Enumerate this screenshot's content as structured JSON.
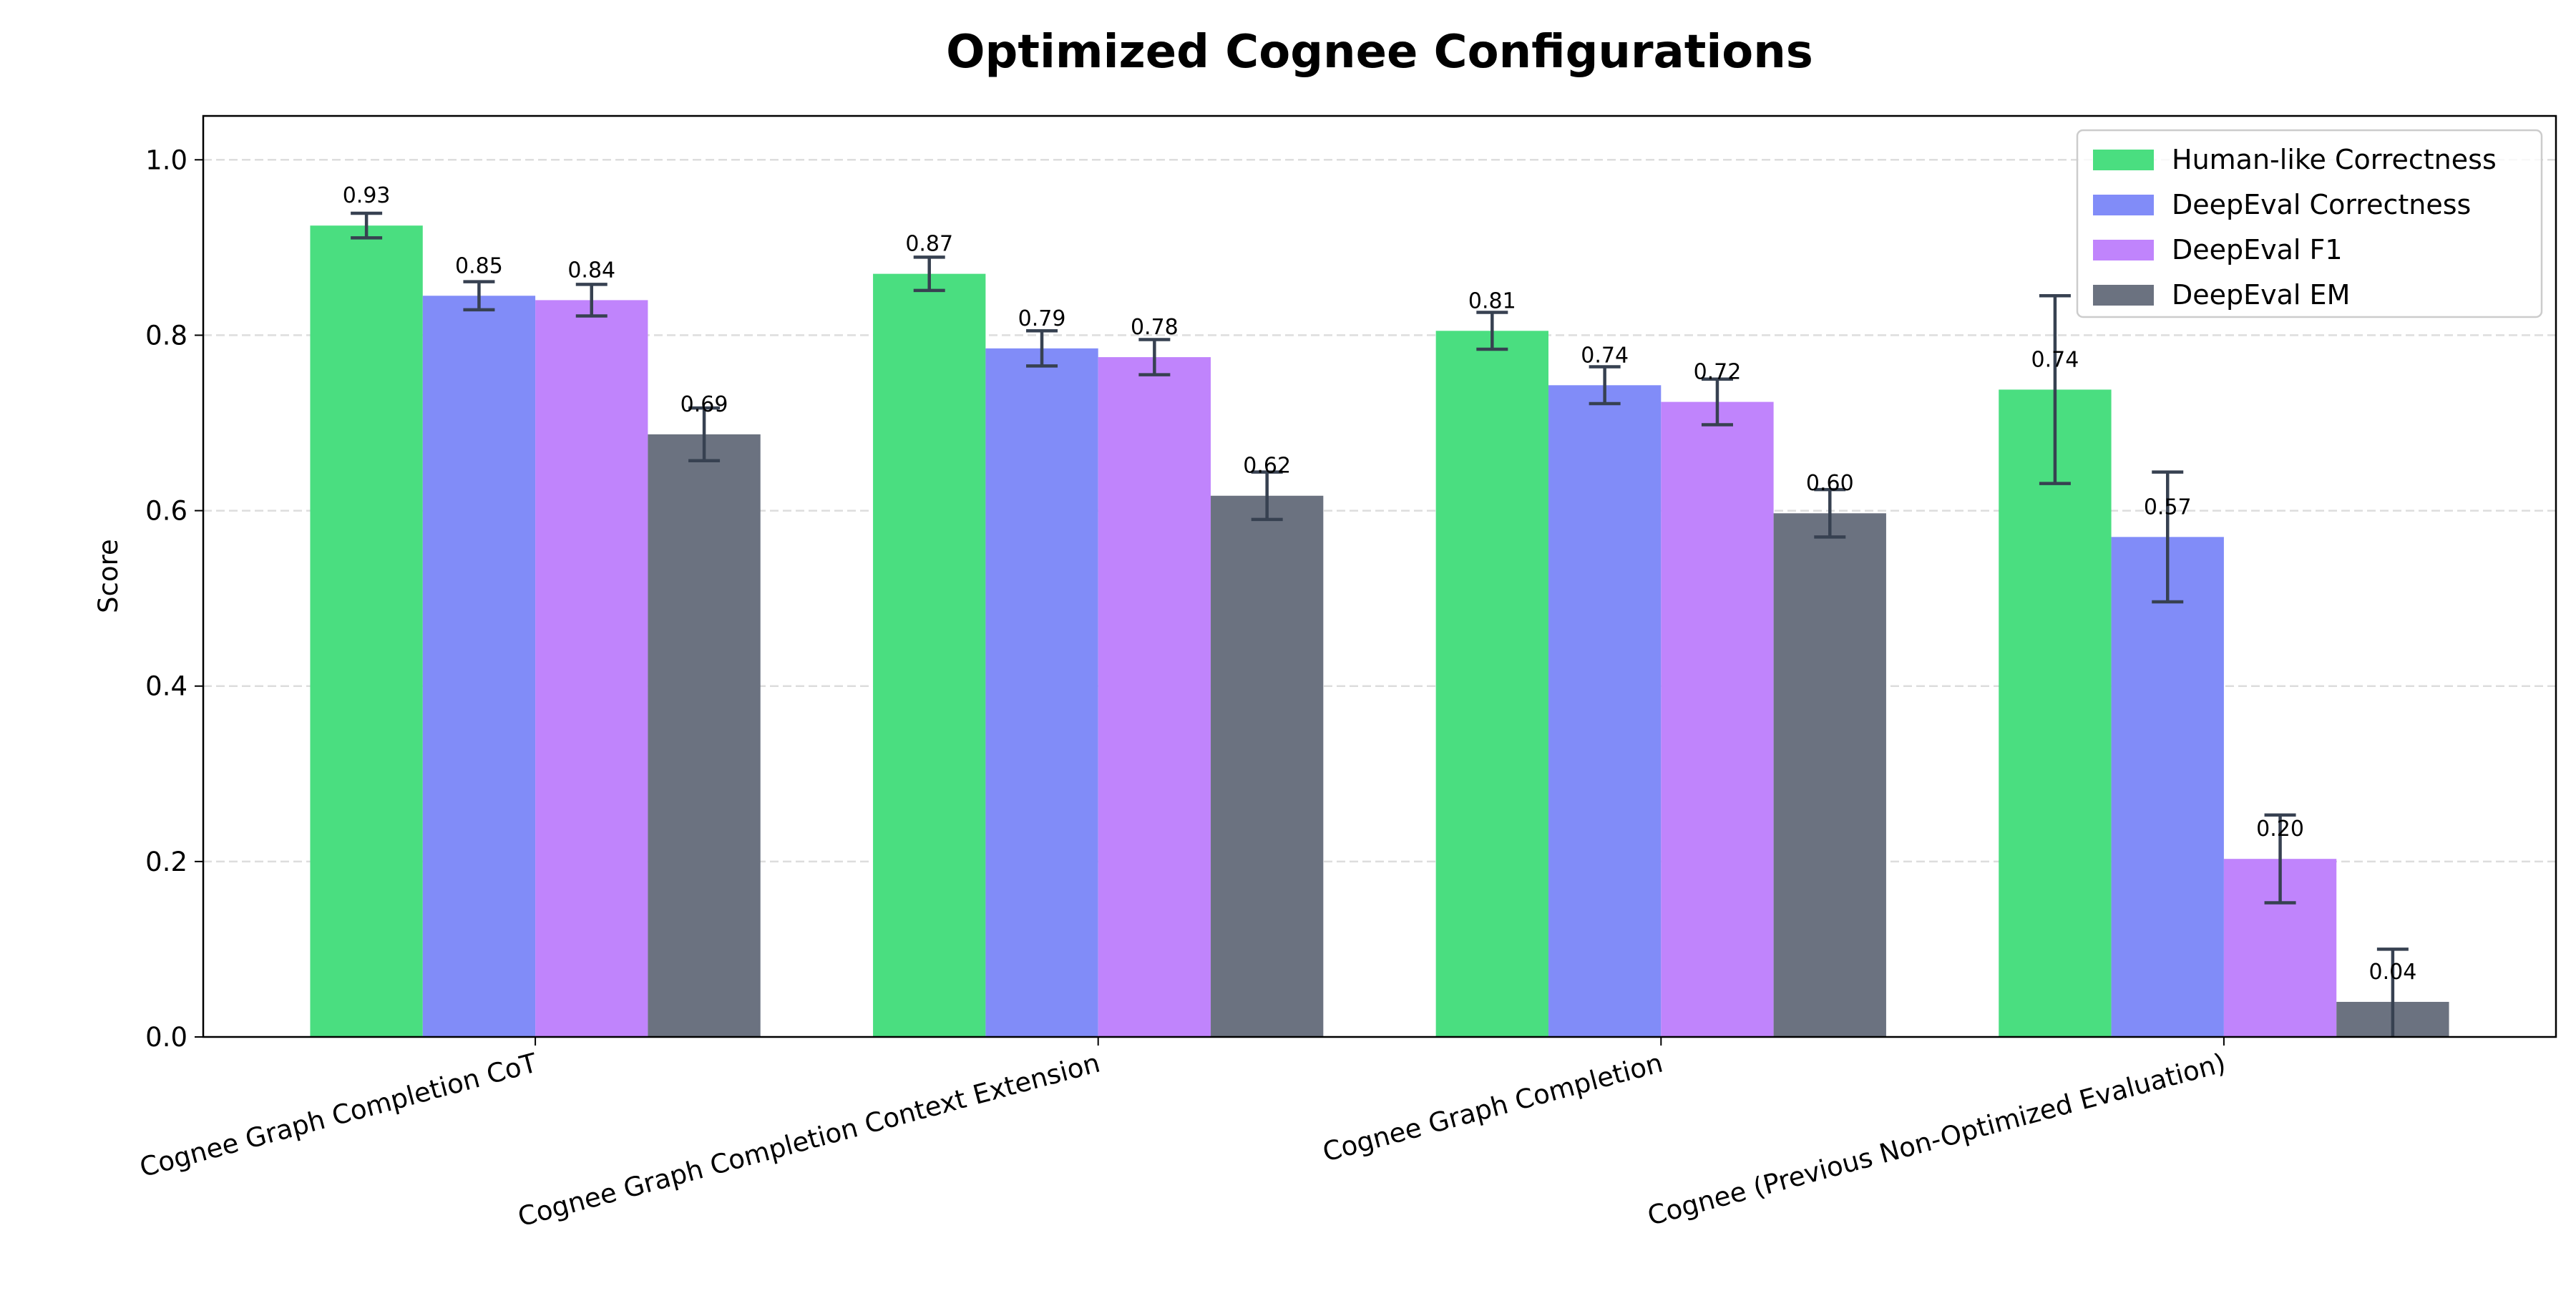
{
  "chart_data": {
    "type": "bar",
    "title": "Optimized Cognee Configurations",
    "xlabel": "",
    "ylabel": "Score",
    "ylim": [
      0,
      1.05
    ],
    "yticks": [
      0.0,
      0.2,
      0.4,
      0.6,
      0.8,
      1.0
    ],
    "ytick_labels": [
      "0.0",
      "0.2",
      "0.4",
      "0.6",
      "0.8",
      "1.0"
    ],
    "grid": "y dashed",
    "legend_position": "top-right",
    "categories": [
      "Cognee Graph Completion CoT",
      "Cognee Graph Completion Context Extension",
      "Cognee Graph Completion",
      "Cognee (Previous Non-Optimized Evaluation)"
    ],
    "series": [
      {
        "name": "Human-like Correctness",
        "color": "#4ade80",
        "values": [
          0.925,
          0.87,
          0.805,
          0.738
        ],
        "errors": [
          0.014,
          0.019,
          0.021,
          0.107
        ],
        "labels": [
          "0.93",
          "0.87",
          "0.81",
          "0.74"
        ]
      },
      {
        "name": "DeepEval Correctness",
        "color": "#818cf8",
        "values": [
          0.845,
          0.785,
          0.743,
          0.57
        ],
        "errors": [
          0.016,
          0.02,
          0.021,
          0.074
        ],
        "labels": [
          "0.85",
          "0.79",
          "0.74",
          "0.57"
        ]
      },
      {
        "name": "DeepEval F1",
        "color": "#c084fc",
        "values": [
          0.84,
          0.775,
          0.724,
          0.203
        ],
        "errors": [
          0.018,
          0.02,
          0.026,
          0.05
        ],
        "labels": [
          "0.84",
          "0.78",
          "0.72",
          "0.20"
        ]
      },
      {
        "name": "DeepEval EM",
        "color": "#6b7280",
        "values": [
          0.687,
          0.617,
          0.597,
          0.04
        ],
        "errors": [
          0.03,
          0.027,
          0.027,
          0.06
        ],
        "labels": [
          "0.69",
          "0.62",
          "0.60",
          "0.04"
        ]
      }
    ],
    "error_bar_color": "#374151"
  }
}
